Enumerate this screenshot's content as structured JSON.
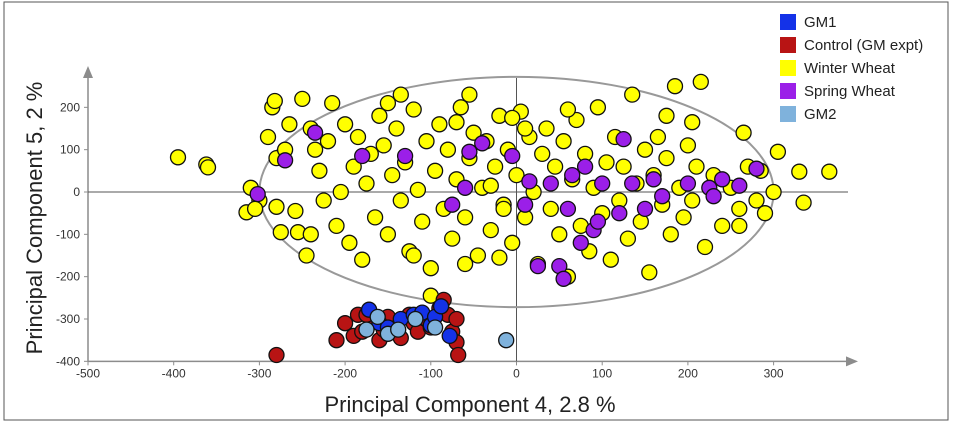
{
  "chart_data": {
    "type": "scatter",
    "xlabel": "Principal Component 4, 2.8 %",
    "ylabel": "Principal Component 5, 2 %",
    "xlim": [
      -500,
      400
    ],
    "ylim": [
      -400,
      280
    ],
    "x_ticks": [
      -500,
      -400,
      -300,
      -200,
      -100,
      0,
      100,
      200,
      300
    ],
    "y_ticks": [
      -400,
      -300,
      -200,
      -100,
      0,
      100,
      200
    ],
    "legend_position": "top-right",
    "confidence_ellipse": {
      "center": [
        0,
        0
      ],
      "rx": 300,
      "ry": 272,
      "color": "#999999"
    },
    "series": [
      {
        "name": "Winter Wheat",
        "color": "#ffff00",
        "points": [
          [
            -395,
            82
          ],
          [
            -362,
            65
          ],
          [
            -360,
            58
          ],
          [
            -310,
            10
          ],
          [
            -315,
            -48
          ],
          [
            -300,
            -20
          ],
          [
            -290,
            130
          ],
          [
            -285,
            200
          ],
          [
            -282,
            215
          ],
          [
            -280,
            80
          ],
          [
            -280,
            -35
          ],
          [
            -275,
            -95
          ],
          [
            -270,
            100
          ],
          [
            -265,
            160
          ],
          [
            -258,
            -45
          ],
          [
            -255,
            -95
          ],
          [
            -250,
            220
          ],
          [
            -245,
            -150
          ],
          [
            -240,
            150
          ],
          [
            -235,
            100
          ],
          [
            -230,
            50
          ],
          [
            -225,
            -20
          ],
          [
            -220,
            120
          ],
          [
            -215,
            210
          ],
          [
            -210,
            -80
          ],
          [
            -205,
            0
          ],
          [
            -200,
            160
          ],
          [
            -195,
            -120
          ],
          [
            -190,
            60
          ],
          [
            -185,
            130
          ],
          [
            -180,
            -160
          ],
          [
            -175,
            20
          ],
          [
            -170,
            90
          ],
          [
            -165,
            -60
          ],
          [
            -160,
            180
          ],
          [
            -155,
            110
          ],
          [
            -150,
            -100
          ],
          [
            -145,
            40
          ],
          [
            -140,
            150
          ],
          [
            -135,
            -20
          ],
          [
            -130,
            70
          ],
          [
            -125,
            -140
          ],
          [
            -120,
            195
          ],
          [
            -115,
            5
          ],
          [
            -110,
            -70
          ],
          [
            -105,
            120
          ],
          [
            -100,
            -180
          ],
          [
            -95,
            50
          ],
          [
            -90,
            160
          ],
          [
            -85,
            -40
          ],
          [
            -80,
            100
          ],
          [
            -75,
            -110
          ],
          [
            -70,
            30
          ],
          [
            -65,
            200
          ],
          [
            -60,
            -60
          ],
          [
            -55,
            80
          ],
          [
            -50,
            140
          ],
          [
            -45,
            -150
          ],
          [
            -40,
            10
          ],
          [
            -35,
            120
          ],
          [
            -30,
            -90
          ],
          [
            -25,
            60
          ],
          [
            -20,
            180
          ],
          [
            -15,
            -30
          ],
          [
            -10,
            100
          ],
          [
            -5,
            -120
          ],
          [
            0,
            40
          ],
          [
            5,
            190
          ],
          [
            10,
            -60
          ],
          [
            15,
            130
          ],
          [
            20,
            0
          ],
          [
            25,
            -170
          ],
          [
            30,
            90
          ],
          [
            35,
            150
          ],
          [
            40,
            -40
          ],
          [
            45,
            60
          ],
          [
            50,
            -100
          ],
          [
            55,
            120
          ],
          [
            60,
            -200
          ],
          [
            65,
            30
          ],
          [
            70,
            170
          ],
          [
            75,
            -80
          ],
          [
            80,
            90
          ],
          [
            85,
            -140
          ],
          [
            90,
            10
          ],
          [
            95,
            200
          ],
          [
            100,
            -50
          ],
          [
            105,
            70
          ],
          [
            110,
            -160
          ],
          [
            115,
            130
          ],
          [
            120,
            -20
          ],
          [
            125,
            60
          ],
          [
            130,
            -110
          ],
          [
            135,
            230
          ],
          [
            140,
            20
          ],
          [
            145,
            -70
          ],
          [
            150,
            100
          ],
          [
            155,
            -190
          ],
          [
            160,
            40
          ],
          [
            165,
            130
          ],
          [
            170,
            -30
          ],
          [
            175,
            80
          ],
          [
            180,
            -100
          ],
          [
            185,
            250
          ],
          [
            190,
            10
          ],
          [
            195,
            -60
          ],
          [
            200,
            110
          ],
          [
            205,
            -20
          ],
          [
            210,
            60
          ],
          [
            215,
            260
          ],
          [
            220,
            -130
          ],
          [
            230,
            40
          ],
          [
            240,
            -80
          ],
          [
            250,
            10
          ],
          [
            260,
            -40
          ],
          [
            265,
            140
          ],
          [
            270,
            60
          ],
          [
            280,
            -20
          ],
          [
            285,
            50
          ],
          [
            290,
            -50
          ],
          [
            300,
            0
          ],
          [
            305,
            95
          ],
          [
            330,
            48
          ],
          [
            335,
            -25
          ],
          [
            365,
            48
          ],
          [
            -305,
            -40
          ],
          [
            -60,
            -170
          ],
          [
            -20,
            -155
          ],
          [
            -100,
            -245
          ],
          [
            -15,
            -40
          ],
          [
            -30,
            15
          ],
          [
            -70,
            165
          ],
          [
            -240,
            -100
          ],
          [
            -120,
            -150
          ],
          [
            175,
            180
          ],
          [
            -150,
            210
          ],
          [
            60,
            195
          ],
          [
            -5,
            175
          ],
          [
            10,
            150
          ],
          [
            -55,
            230
          ],
          [
            -135,
            230
          ],
          [
            205,
            165
          ],
          [
            260,
            -80
          ]
        ]
      },
      {
        "name": "Spring Wheat",
        "color": "#9b1fe8",
        "points": [
          [
            -302,
            -5
          ],
          [
            -270,
            75
          ],
          [
            -235,
            140
          ],
          [
            -180,
            85
          ],
          [
            -60,
            10
          ],
          [
            -55,
            95
          ],
          [
            -5,
            85
          ],
          [
            10,
            -30
          ],
          [
            15,
            25
          ],
          [
            25,
            -175
          ],
          [
            40,
            20
          ],
          [
            50,
            -175
          ],
          [
            55,
            -205
          ],
          [
            60,
            -40
          ],
          [
            65,
            40
          ],
          [
            75,
            -120
          ],
          [
            80,
            60
          ],
          [
            90,
            -90
          ],
          [
            95,
            -70
          ],
          [
            100,
            20
          ],
          [
            125,
            125
          ],
          [
            150,
            -40
          ],
          [
            160,
            30
          ],
          [
            170,
            -10
          ],
          [
            200,
            20
          ],
          [
            225,
            10
          ],
          [
            240,
            30
          ],
          [
            260,
            15
          ],
          [
            280,
            55
          ],
          [
            -40,
            115
          ],
          [
            -130,
            85
          ],
          [
            -75,
            -30
          ],
          [
            120,
            -50
          ],
          [
            135,
            20
          ],
          [
            230,
            -10
          ]
        ]
      },
      {
        "name": "Control (GM expt)",
        "color": "#b81414",
        "points": [
          [
            -280,
            -385
          ],
          [
            -210,
            -350
          ],
          [
            -200,
            -310
          ],
          [
            -190,
            -340
          ],
          [
            -185,
            -290
          ],
          [
            -180,
            -330
          ],
          [
            -170,
            -310
          ],
          [
            -160,
            -350
          ],
          [
            -150,
            -295
          ],
          [
            -140,
            -320
          ],
          [
            -135,
            -345
          ],
          [
            -125,
            -290
          ],
          [
            -120,
            -310
          ],
          [
            -115,
            -330
          ],
          [
            -105,
            -300
          ],
          [
            -100,
            -320
          ],
          [
            -90,
            -275
          ],
          [
            -85,
            -255
          ],
          [
            -80,
            -290
          ],
          [
            -75,
            -330
          ],
          [
            -70,
            -355
          ],
          [
            -68,
            -385
          ],
          [
            -70,
            -300
          ],
          [
            -155,
            -325
          ],
          [
            -175,
            -290
          ]
        ]
      },
      {
        "name": "GM1",
        "color": "#1432e8",
        "points": [
          [
            -172,
            -278
          ],
          [
            -160,
            -310
          ],
          [
            -150,
            -320
          ],
          [
            -135,
            -300
          ],
          [
            -120,
            -290
          ],
          [
            -110,
            -285
          ],
          [
            -100,
            -315
          ],
          [
            -95,
            -295
          ],
          [
            -88,
            -270
          ],
          [
            -78,
            -340
          ]
        ]
      },
      {
        "name": "GM2",
        "color": "#7fb2dc",
        "points": [
          [
            -175,
            -325
          ],
          [
            -162,
            -295
          ],
          [
            -150,
            -335
          ],
          [
            -138,
            -325
          ],
          [
            -118,
            -300
          ],
          [
            -95,
            -320
          ],
          [
            -12,
            -350
          ]
        ]
      }
    ]
  }
}
